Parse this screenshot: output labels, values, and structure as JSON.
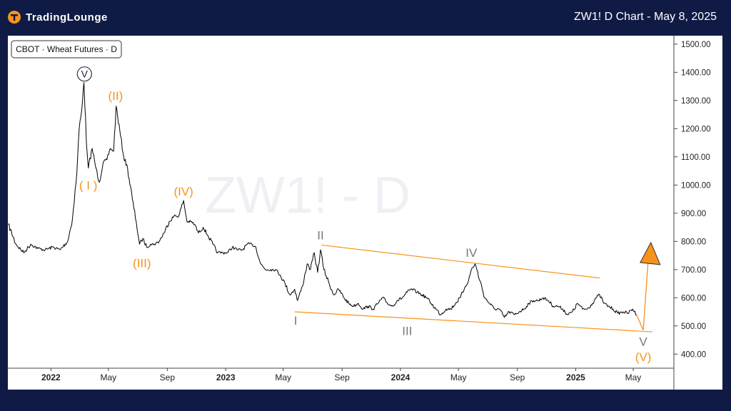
{
  "header": {
    "brand": "TradingLounge",
    "title": "ZW1! D Chart - May 8, 2025"
  },
  "legend": {
    "label": "CBOT · Wheat Futures · D"
  },
  "watermark": "ZW1! - D",
  "colors": {
    "background": "#0f1b45",
    "accent": "#f7931a",
    "price": "#000000",
    "channel": "#f7931a",
    "wave_primary": "#f7931a",
    "wave_intermediate": "#777777"
  },
  "chart_data": {
    "type": "line",
    "title": "ZW1! D Chart - May 8, 2025",
    "ylim": [
      350,
      1530
    ],
    "y_ticks": [
      "1500.00",
      "1400.00",
      "1300.00",
      "1200.00",
      "1100.00",
      "1000.00",
      "900.00",
      "800.00",
      "700.00",
      "600.00",
      "500.00",
      "400.00"
    ],
    "x_ticks": [
      "2022",
      "May",
      "Sep",
      "2023",
      "May",
      "Sep",
      "2024",
      "May",
      "Sep",
      "2025",
      "May"
    ],
    "series": [
      {
        "name": "",
        "x": [
          "2021-10-04",
          "2021-10-20",
          "2021-11-05",
          "2021-11-20",
          "2021-12-05",
          "2021-12-20",
          "2022-01-05",
          "2022-01-20",
          "2022-02-05",
          "2022-02-15",
          "2022-02-24",
          "2022-03-01",
          "2022-03-08",
          "2022-03-11",
          "2022-03-16",
          "2022-03-20",
          "2022-03-28",
          "2022-04-05",
          "2022-04-12",
          "2022-04-20",
          "2022-04-28",
          "2022-05-05",
          "2022-05-12",
          "2022-05-17",
          "2022-05-25",
          "2022-06-02",
          "2022-06-10",
          "2022-06-20",
          "2022-06-28",
          "2022-07-05",
          "2022-07-12",
          "2022-07-20",
          "2022-07-28",
          "2022-08-05",
          "2022-08-15",
          "2022-08-25",
          "2022-09-05",
          "2022-09-15",
          "2022-09-25",
          "2022-10-05",
          "2022-10-12",
          "2022-10-20",
          "2022-10-28",
          "2022-11-05",
          "2022-11-15",
          "2022-11-25",
          "2022-12-05",
          "2022-12-15",
          "2022-12-25",
          "2023-01-05",
          "2023-01-15",
          "2023-01-25",
          "2023-02-05",
          "2023-02-15",
          "2023-02-25",
          "2023-03-05",
          "2023-03-15",
          "2023-03-25",
          "2023-04-05",
          "2023-04-15",
          "2023-04-25",
          "2023-05-05",
          "2023-05-15",
          "2023-05-25",
          "2023-05-31",
          "2023-06-10",
          "2023-06-20",
          "2023-06-27",
          "2023-07-05",
          "2023-07-12",
          "2023-07-18",
          "2023-07-25",
          "2023-08-05",
          "2023-08-15",
          "2023-08-25",
          "2023-09-05",
          "2023-09-15",
          "2023-09-25",
          "2023-10-05",
          "2023-10-15",
          "2023-10-25",
          "2023-11-05",
          "2023-11-15",
          "2023-11-25",
          "2023-12-05",
          "2023-12-15",
          "2023-12-25",
          "2024-01-05",
          "2024-01-15",
          "2024-01-25",
          "2024-02-05",
          "2024-02-15",
          "2024-02-25",
          "2024-03-05",
          "2024-03-15",
          "2024-03-25",
          "2024-04-05",
          "2024-04-15",
          "2024-04-25",
          "2024-05-05",
          "2024-05-15",
          "2024-05-22",
          "2024-05-28",
          "2024-06-05",
          "2024-06-15",
          "2024-06-25",
          "2024-07-05",
          "2024-07-15",
          "2024-07-25",
          "2024-08-05",
          "2024-08-15",
          "2024-08-26",
          "2024-09-05",
          "2024-09-15",
          "2024-09-25",
          "2024-10-05",
          "2024-10-15",
          "2024-10-25",
          "2024-11-05",
          "2024-11-15",
          "2024-11-25",
          "2024-12-05",
          "2024-12-15",
          "2024-12-25",
          "2025-01-05",
          "2025-01-15",
          "2025-01-25",
          "2025-02-05",
          "2025-02-12",
          "2025-02-20",
          "2025-03-01",
          "2025-03-10",
          "2025-03-20",
          "2025-03-30",
          "2025-04-10",
          "2025-04-20",
          "2025-04-30",
          "2025-05-08"
        ],
        "values": [
          860,
          790,
          760,
          790,
          775,
          770,
          780,
          770,
          800,
          880,
          1040,
          1200,
          1300,
          1364,
          1150,
          1060,
          1130,
          1060,
          1010,
          1080,
          1090,
          1130,
          1120,
          1280,
          1190,
          1100,
          1060,
          950,
          870,
          790,
          810,
          780,
          790,
          790,
          800,
          830,
          870,
          890,
          890,
          945,
          870,
          870,
          860,
          830,
          850,
          820,
          790,
          760,
          760,
          760,
          780,
          770,
          770,
          790,
          790,
          780,
          720,
          700,
          700,
          700,
          680,
          650,
          610,
          630,
          590,
          640,
          720,
          700,
          760,
          690,
          770,
          700,
          650,
          610,
          630,
          600,
          580,
          570,
          580,
          560,
          570,
          560,
          580,
          600,
          580,
          570,
          590,
          600,
          620,
          630,
          620,
          610,
          600,
          580,
          560,
          540,
          560,
          560,
          580,
          600,
          640,
          660,
          700,
          720,
          660,
          600,
          580,
          560,
          560,
          530,
          550,
          540,
          550,
          560,
          580,
          590,
          590,
          600,
          590,
          570,
          570,
          560,
          540,
          550,
          580,
          560,
          560,
          580,
          600,
          610,
          580,
          570,
          560,
          545,
          550,
          545,
          560,
          540
        ]
      }
    ],
    "channel_lines": [
      {
        "from": [
          "2023-07-20",
          787
        ],
        "to": [
          "2025-02-20",
          670
        ]
      },
      {
        "from": [
          "2023-05-25",
          550
        ],
        "to": [
          "2025-06-10",
          479
        ]
      }
    ],
    "projection": {
      "from": [
        "2025-05-08",
        540
      ],
      "via": [
        "2025-05-22",
        485
      ],
      "to": [
        "2025-06-01",
        725
      ]
    },
    "annotations": [
      {
        "text": "V",
        "date": "2022-03-12",
        "value": 1394,
        "style": "circled"
      },
      {
        "text": "(II)",
        "date": "2022-05-16",
        "value": 1317,
        "style": "primary"
      },
      {
        "text": "( I )",
        "date": "2022-03-20",
        "value": 1000,
        "style": "primary"
      },
      {
        "text": "(IV)",
        "date": "2022-10-05",
        "value": 978,
        "style": "primary"
      },
      {
        "text": "(III)",
        "date": "2022-07-10",
        "value": 724,
        "style": "primary"
      },
      {
        "text": "II",
        "date": "2023-07-18",
        "value": 822,
        "style": "intermediate"
      },
      {
        "text": "IV",
        "date": "2024-05-28",
        "value": 760,
        "style": "intermediate"
      },
      {
        "text": "I",
        "date": "2023-05-27",
        "value": 520,
        "style": "intermediate"
      },
      {
        "text": "III",
        "date": "2024-01-15",
        "value": 483,
        "style": "intermediate"
      },
      {
        "text": "V",
        "date": "2025-05-22",
        "value": 445,
        "style": "intermediate"
      },
      {
        "text": "(V)",
        "date": "2025-05-22",
        "value": 390,
        "style": "primary"
      }
    ],
    "grid": false,
    "legend_position": "top-left"
  }
}
